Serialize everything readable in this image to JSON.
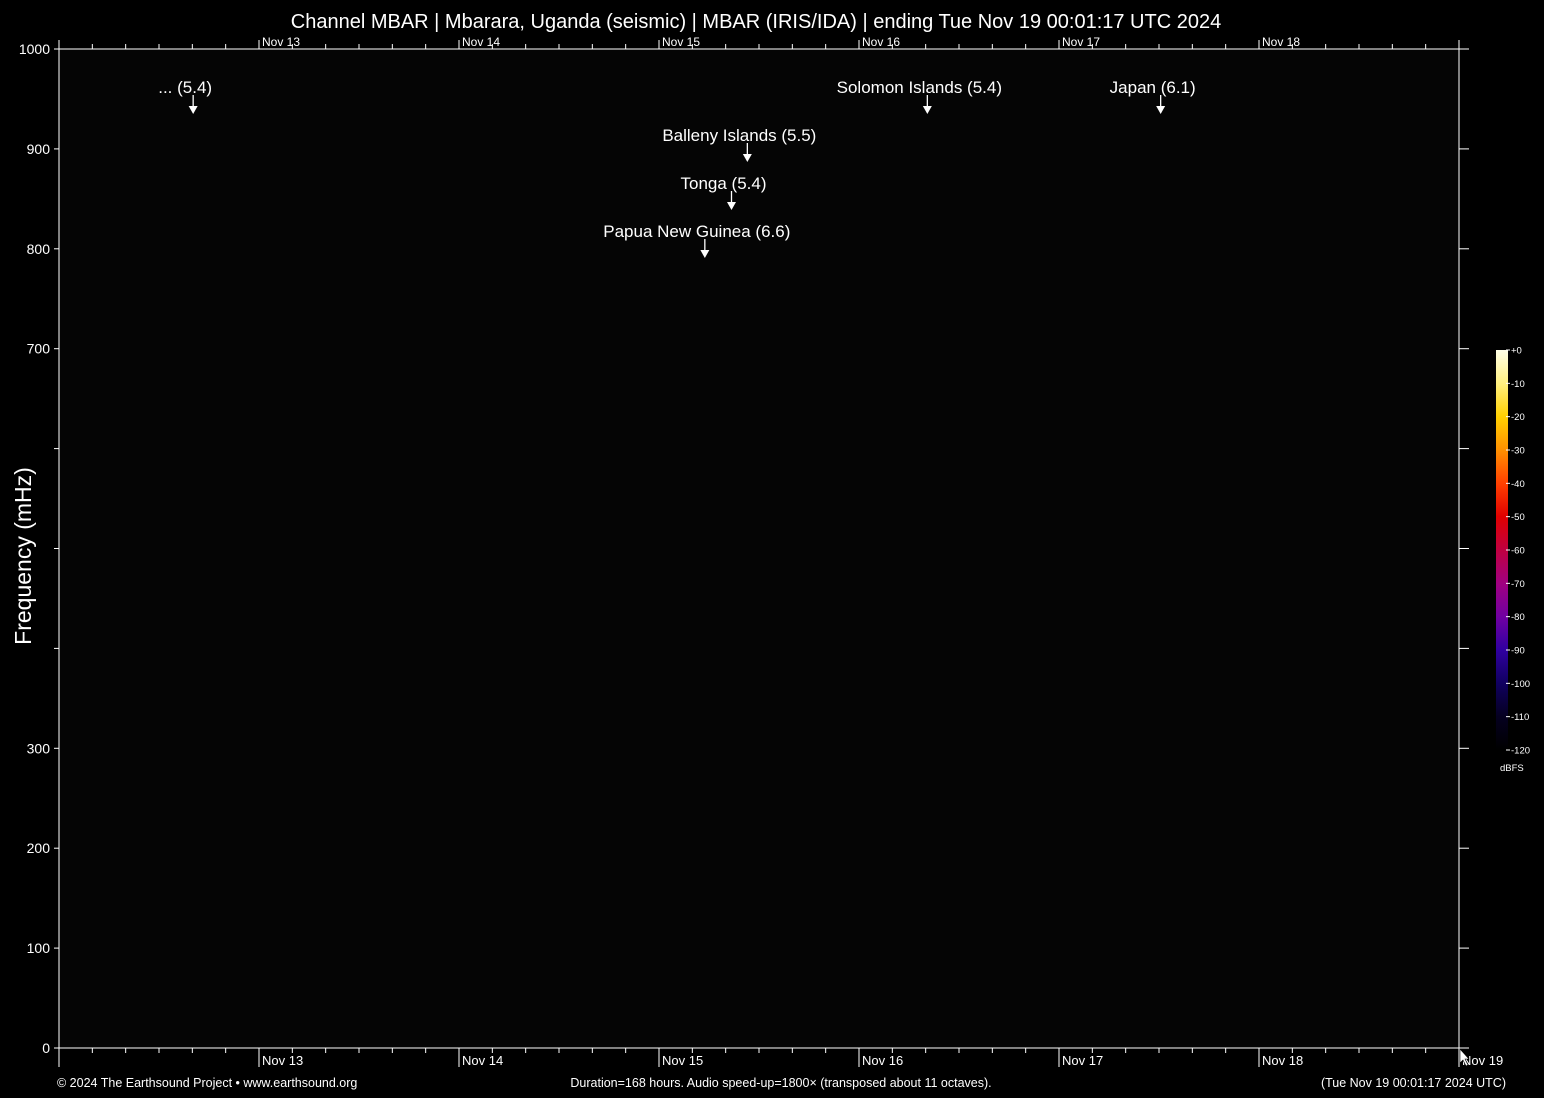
{
  "chart_data": {
    "type": "heatmap",
    "title": "Channel MBAR | Mbarara, Uganda (seismic) | MBAR (IRIS/IDA) | ending Tue Nov 19 00:01:17 UTC 2024",
    "ylabel": "Frequency (mHz)",
    "ylim": [
      0,
      1000
    ],
    "y_ticks": [
      {
        "value": 0,
        "label": "0"
      },
      {
        "value": 100,
        "label": "100"
      },
      {
        "value": 200,
        "label": "200"
      },
      {
        "value": 300,
        "label": "300"
      },
      {
        "value": 400,
        "label": ""
      },
      {
        "value": 500,
        "label": ""
      },
      {
        "value": 600,
        "label": ""
      },
      {
        "value": 700,
        "label": "700"
      },
      {
        "value": 800,
        "label": "800"
      },
      {
        "value": 900,
        "label": "900"
      },
      {
        "value": 1000,
        "label": "1000"
      }
    ],
    "x_unit": "hours",
    "xlim": [
      0,
      168
    ],
    "x_ticks_top": [
      {
        "value": 24,
        "label": "Nov 13"
      },
      {
        "value": 48,
        "label": "Nov 14"
      },
      {
        "value": 72,
        "label": "Nov 15"
      },
      {
        "value": 96,
        "label": "Nov 16"
      },
      {
        "value": 120,
        "label": "Nov 17"
      },
      {
        "value": 144,
        "label": "Nov 18"
      }
    ],
    "x_ticks_bottom": [
      {
        "value": 24,
        "label": "Nov 13"
      },
      {
        "value": 48,
        "label": "Nov 14"
      },
      {
        "value": 72,
        "label": "Nov 15"
      },
      {
        "value": 96,
        "label": "Nov 16"
      },
      {
        "value": 120,
        "label": "Nov 17"
      },
      {
        "value": 144,
        "label": "Nov 18"
      },
      {
        "value": 168,
        "label": "Nov 19"
      }
    ],
    "events": [
      {
        "label": "... (5.4)",
        "x": 16.1,
        "row": 0
      },
      {
        "label": "Solomon Islands (5.4)",
        "x": 104.2,
        "row": 0
      },
      {
        "label": "Japan (6.1)",
        "x": 132.2,
        "row": 0
      },
      {
        "label": "Balleny Islands (5.5)",
        "x": 82.6,
        "row": 1
      },
      {
        "label": "Tonga (5.4)",
        "x": 80.7,
        "row": 2
      },
      {
        "label": "Papua New Guinea (6.6)",
        "x": 77.5,
        "row": 3
      }
    ],
    "colorbar": {
      "unit": "dBFS",
      "ticks": [
        "+0",
        "-10",
        "-20",
        "-30",
        "-40",
        "-50",
        "-60",
        "-70",
        "-80",
        "-90",
        "-100",
        "-110",
        "-120"
      ],
      "colors": [
        "#ffffe8",
        "#fff080",
        "#ffd000",
        "#ff9000",
        "#ff4000",
        "#e00000",
        "#c00040",
        "#a00080",
        "#7000a0",
        "#3000a0",
        "#100060",
        "#050020",
        "#000000"
      ]
    },
    "legend": "none",
    "grid": false
  },
  "footer": {
    "left": "© 2024 The Earthsound Project • www.earthsound.org",
    "center": "Duration=168 hours. Audio speed-up=1800× (transposed about 11 octaves).",
    "right": "(Tue Nov 19 00:01:17 2024 UTC)"
  }
}
